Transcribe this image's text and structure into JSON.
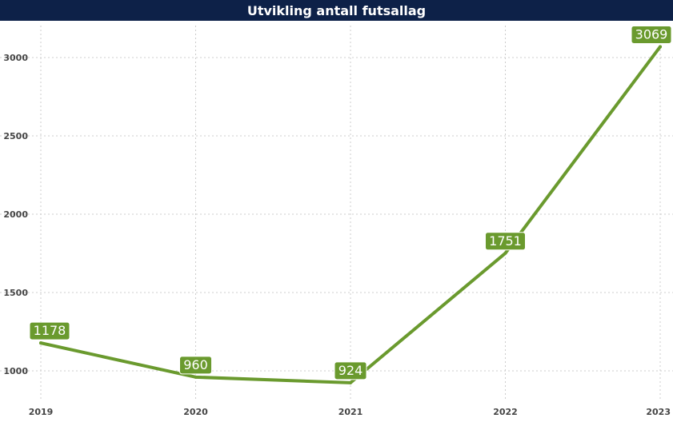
{
  "chart_data": {
    "type": "line",
    "title": "Utvikling antall futsallag",
    "xlabel": "",
    "ylabel": "",
    "categories": [
      "2019",
      "2020",
      "2021",
      "2022",
      "2023"
    ],
    "series": [
      {
        "values": [
          1178,
          960,
          924,
          1751,
          3069
        ]
      }
    ],
    "data_labels": [
      "1178",
      "960",
      "924",
      "1751",
      "3069"
    ],
    "y_ticks": [
      "1000",
      "1500",
      "2000",
      "2500",
      "3000"
    ],
    "ylim": [
      850,
      3200
    ],
    "grid": true,
    "legend": "none",
    "colors": {
      "line": "#6a9a2e",
      "label_bg": "#6a9a2e",
      "title_bg": "#0d2148",
      "grid": "#cccccc"
    }
  }
}
